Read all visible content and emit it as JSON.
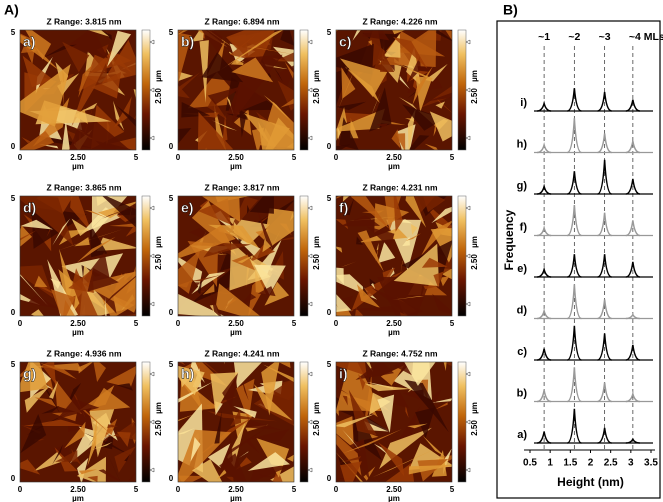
{
  "panel_a": {
    "label": "A)",
    "images": [
      {
        "label": "a)",
        "z_range": "Z Range:  3.815 nm"
      },
      {
        "label": "b)",
        "z_range": "Z Range:  6.894 nm"
      },
      {
        "label": "c)",
        "z_range": "Z Range:  4.226 nm"
      },
      {
        "label": "d)",
        "z_range": "Z Range:  3.865 nm"
      },
      {
        "label": "e)",
        "z_range": "Z Range:  3.817 nm"
      },
      {
        "label": "f)",
        "z_range": "Z Range:  4.231 nm"
      },
      {
        "label": "g)",
        "z_range": "Z Range:  4.936 nm"
      },
      {
        "label": "h)",
        "z_range": "Z Range:  4.241 nm"
      },
      {
        "label": "i)",
        "z_range": "Z Range:  4.752 nm"
      }
    ],
    "x_ticks": [
      "0",
      "2.50",
      "5"
    ],
    "x_unit": "µm",
    "y_ticks": [
      "0",
      "5"
    ],
    "y_unit": "µm",
    "y_mid": "2.50"
  },
  "chart_data": {
    "type": "line",
    "label": "B)",
    "xlabel": "Height (nm)",
    "ylabel": "Frequency",
    "xlim": [
      0.5,
      3.5
    ],
    "xticks": [
      0.5,
      1,
      1.5,
      2,
      2.5,
      3,
      3.5
    ],
    "x": [
      0.85,
      1.6,
      2.35,
      3.05
    ],
    "reference_labels": [
      "~1",
      "~2",
      "~3",
      "~4 MLs"
    ],
    "series": [
      {
        "name": "a)",
        "color": "#000000",
        "values": [
          0.3,
          0.9,
          0.4,
          0.1
        ]
      },
      {
        "name": "b)",
        "color": "#999999",
        "values": [
          0.3,
          0.9,
          0.5,
          0.2
        ]
      },
      {
        "name": "c)",
        "color": "#000000",
        "values": [
          0.3,
          0.9,
          0.7,
          0.4
        ]
      },
      {
        "name": "d)",
        "color": "#999999",
        "values": [
          0.2,
          0.9,
          0.5,
          0.1
        ]
      },
      {
        "name": "e)",
        "color": "#000000",
        "values": [
          0.2,
          0.6,
          0.6,
          0.4
        ]
      },
      {
        "name": "f)",
        "color": "#999999",
        "values": [
          0.2,
          0.8,
          0.6,
          0.4
        ]
      },
      {
        "name": "g)",
        "color": "#000000",
        "values": [
          0.2,
          0.6,
          0.9,
          0.4
        ]
      },
      {
        "name": "h)",
        "color": "#999999",
        "values": [
          0.2,
          0.9,
          0.5,
          0.3
        ]
      },
      {
        "name": "i)",
        "color": "#000000",
        "values": [
          0.2,
          0.6,
          0.5,
          0.3
        ]
      }
    ]
  }
}
